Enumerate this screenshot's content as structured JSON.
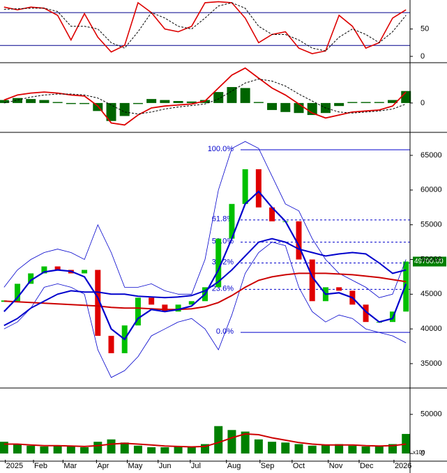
{
  "chart_data": [
    {
      "type": "line",
      "xlim": [
        -0.3,
        30.3
      ],
      "ylim": [
        -9,
        103
      ],
      "yticks": [
        0,
        50
      ],
      "levels": [
        80,
        20
      ],
      "level_color": "#00008b",
      "series": [
        {
          "color": "#dd0000",
          "values": [
            90,
            85,
            90,
            88,
            75,
            30,
            78,
            35,
            8,
            20,
            98,
            80,
            50,
            45,
            55,
            98,
            100,
            98,
            70,
            25,
            40,
            45,
            15,
            5,
            10,
            75,
            55,
            15,
            25,
            70,
            85
          ]
        },
        {
          "color": "#000000",
          "dash": true,
          "values": [
            86,
            87,
            88,
            88,
            82,
            55,
            55,
            50,
            25,
            15,
            45,
            80,
            70,
            55,
            50,
            70,
            92,
            98,
            88,
            55,
            40,
            40,
            30,
            15,
            10,
            35,
            50,
            40,
            25,
            45,
            75
          ]
        }
      ]
    },
    {
      "type": "macd",
      "xlim": [
        -0.3,
        30.3
      ],
      "ylim": [
        -2800,
        3900
      ],
      "yticks": [
        0
      ],
      "series": [
        {
          "kind": "bar",
          "color": "#006400",
          "values": [
            300,
            500,
            400,
            300,
            100,
            -100,
            -100,
            -800,
            -1800,
            -1300,
            -100,
            400,
            300,
            200,
            150,
            300,
            1100,
            1600,
            1500,
            100,
            -700,
            -900,
            -1000,
            -1200,
            -1000,
            -300,
            100,
            100,
            100,
            300,
            1200
          ]
        },
        {
          "kind": "line",
          "color": "#dd0000",
          "values": [
            300,
            800,
            1000,
            1100,
            1000,
            800,
            700,
            -300,
            -2000,
            -2200,
            -1200,
            -500,
            -300,
            -200,
            -100,
            200,
            1500,
            2800,
            3500,
            2500,
            1500,
            800,
            -100,
            -1000,
            -1500,
            -1200,
            -900,
            -800,
            -700,
            -300,
            1100
          ]
        },
        {
          "kind": "line",
          "color": "#000000",
          "dash": true,
          "values": [
            0,
            300,
            600,
            800,
            900,
            900,
            800,
            500,
            -200,
            -900,
            -1100,
            -900,
            -600,
            -400,
            -250,
            -100,
            400,
            1200,
            2000,
            2400,
            2200,
            1700,
            900,
            200,
            -500,
            -900,
            -1000,
            -900,
            -800,
            -600,
            -100
          ]
        }
      ]
    },
    {
      "type": "candlestick",
      "xlim": [
        -0.3,
        30.3
      ],
      "ylim": [
        31690,
        68110
      ],
      "yticks": [
        35000,
        40000,
        45000,
        50000,
        55000,
        60000,
        65000
      ],
      "up_color": "#00c000",
      "down_color": "#e00000",
      "values": [
        44000,
        46500,
        48000,
        49000,
        48500,
        48000,
        48500,
        39000,
        36500,
        40500,
        44500,
        43500,
        42500,
        43500,
        44000,
        46000,
        53000,
        58000,
        63000,
        57500,
        55500,
        55500,
        50000,
        44000,
        46000,
        45500,
        43500,
        41000,
        41000,
        42500,
        49700
      ],
      "series": [
        {
          "color": "#0000cc",
          "width": 0.8,
          "values": [
            46000,
            48500,
            50000,
            51000,
            51500,
            51000,
            50000,
            55000,
            51000,
            46000,
            46000,
            46500,
            45500,
            45000,
            45000,
            50000,
            60000,
            66000,
            67000,
            66000,
            62000,
            58000,
            57000,
            53000,
            50000,
            48000,
            47000,
            46000,
            44500,
            45000,
            50000
          ]
        },
        {
          "color": "#0000cc",
          "width": 0.8,
          "values": [
            40000,
            41000,
            43000,
            46000,
            46500,
            46000,
            45000,
            37000,
            33000,
            34000,
            36000,
            39000,
            40000,
            41000,
            41500,
            40000,
            37000,
            42000,
            48000,
            51000,
            52500,
            52000,
            46000,
            42500,
            41000,
            42000,
            41500,
            40000,
            39500,
            39000,
            38000
          ]
        },
        {
          "color": "#cc0000",
          "width": 2,
          "values": [
            44000,
            43900,
            43800,
            43700,
            43600,
            43500,
            43400,
            43300,
            43100,
            43000,
            43000,
            42900,
            42800,
            42800,
            42900,
            43200,
            43800,
            44800,
            46000,
            47000,
            47500,
            47800,
            48000,
            48000,
            48000,
            47900,
            47800,
            47600,
            47400,
            47100,
            46800
          ]
        },
        {
          "color": "#0000cc",
          "width": 2,
          "values": [
            40500,
            41500,
            43000,
            44000,
            45000,
            45500,
            45300,
            45300,
            45000,
            45000,
            44700,
            44600,
            44500,
            44600,
            44800,
            45500,
            46800,
            48500,
            50500,
            52500,
            53000,
            52500,
            51500,
            51000,
            50500,
            50800,
            51000,
            50800,
            49500,
            48000,
            48500
          ]
        },
        {
          "color": "#0000cc",
          "width": 2.2,
          "values": [
            42500,
            44500,
            47000,
            48200,
            48500,
            48300,
            47500,
            44500,
            40000,
            38500,
            41500,
            42800,
            42500,
            42800,
            43300,
            45000,
            48500,
            53000,
            58000,
            59800,
            57500,
            55500,
            52000,
            47500,
            45000,
            45200,
            44500,
            42500,
            41000,
            41500,
            46500
          ]
        }
      ],
      "fib_color": "#0000cc",
      "fib": [
        {
          "label": "100.0%",
          "value": 65800
        },
        {
          "label": "61.8%",
          "value": 55700
        },
        {
          "label": "50.0%",
          "value": 52500
        },
        {
          "label": "38.2%",
          "value": 49500
        },
        {
          "label": "23.6%",
          "value": 45700
        },
        {
          "label": "0.0%",
          "value": 39500
        }
      ],
      "last_price": {
        "value": 49700,
        "label": "49700.00"
      }
    },
    {
      "type": "bar",
      "xlim": [
        -0.3,
        30.3
      ],
      "ylim": [
        -8000,
        81000
      ],
      "yticks": [
        0,
        50000
      ],
      "color": "#008000",
      "unit_label": "x100",
      "values": [
        15000,
        12000,
        10000,
        9000,
        10000,
        9000,
        8000,
        15000,
        18000,
        14000,
        10000,
        8000,
        8000,
        9000,
        9000,
        12000,
        35000,
        30000,
        28000,
        18000,
        15000,
        14000,
        12000,
        10000,
        11000,
        12000,
        10000,
        9000,
        10000,
        12000,
        25000
      ],
      "series": [
        {
          "color": "#cc0000",
          "values": [
            12000,
            12000,
            11000,
            10000,
            10000,
            9500,
            9000,
            10000,
            12000,
            13000,
            12000,
            11000,
            9500,
            9000,
            8500,
            9000,
            14000,
            20000,
            25000,
            24000,
            20000,
            17000,
            14000,
            12000,
            11000,
            11000,
            11000,
            10000,
            9500,
            10000,
            12000
          ]
        }
      ],
      "xticks": [
        {
          "value": 0.1,
          "label": "2025"
        },
        {
          "value": 2.2,
          "label": "Feb"
        },
        {
          "value": 4.4,
          "label": "Mar"
        },
        {
          "value": 6.9,
          "label": "Apr"
        },
        {
          "value": 9.2,
          "label": "May"
        },
        {
          "value": 11.5,
          "label": "Jun"
        },
        {
          "value": 13.9,
          "label": "Jul"
        },
        {
          "value": 16.6,
          "label": "Aug"
        },
        {
          "value": 19.1,
          "label": "Sep"
        },
        {
          "value": 21.5,
          "label": "Oct"
        },
        {
          "value": 24.2,
          "label": "Nov"
        },
        {
          "value": 26.5,
          "label": "Dec"
        },
        {
          "value": 29.1,
          "label": "2026"
        }
      ]
    }
  ]
}
